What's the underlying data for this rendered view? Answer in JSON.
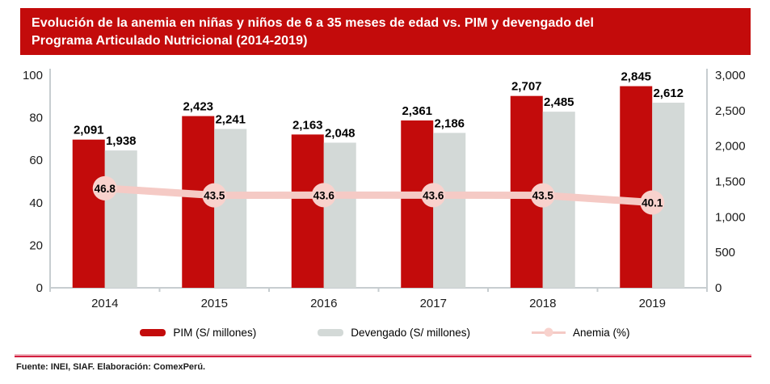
{
  "header": {
    "title": "Evolución de la anemia en niñas y niños de 6 a 35 meses de edad vs. PIM y devengado del\nPrograma Articulado Nutricional (2014-2019)"
  },
  "chart_data": {
    "type": "bar",
    "subtype": "combo-bar-line-dual-axis",
    "categories": [
      "2014",
      "2015",
      "2016",
      "2017",
      "2018",
      "2019"
    ],
    "series": [
      {
        "name": "PIM (S/ millones)",
        "type": "bar",
        "axis": "right",
        "color": "#C30B0B",
        "values": [
          2091,
          2423,
          2163,
          2361,
          2707,
          2845
        ],
        "labels": [
          "2,091",
          "2,423",
          "2,163",
          "2,361",
          "2,707",
          "2,845"
        ]
      },
      {
        "name": "Devengado (S/ millones)",
        "type": "bar",
        "axis": "right",
        "color": "#D3D9D7",
        "values": [
          1938,
          2241,
          2048,
          2186,
          2485,
          2612
        ],
        "labels": [
          "1,938",
          "2,241",
          "2,048",
          "2,186",
          "2,485",
          "2,612"
        ]
      },
      {
        "name": "Anemia (%)",
        "type": "line",
        "axis": "left",
        "color": "#F5CAC5",
        "marker_color": "#F8D2CD",
        "values": [
          46.8,
          43.5,
          43.6,
          43.6,
          43.5,
          40.1
        ],
        "labels": [
          "46.8",
          "43.5",
          "43.6",
          "43.6",
          "43.5",
          "40.1"
        ]
      }
    ],
    "left_axis": {
      "min": 0,
      "max": 100,
      "ticks": [
        "0",
        "20",
        "40",
        "60",
        "80",
        "100"
      ]
    },
    "right_axis": {
      "min": 0,
      "max": 3000,
      "ticks": [
        "0",
        "500",
        "1,000",
        "1,500",
        "2,000",
        "2,500",
        "3,000"
      ]
    },
    "grid": false,
    "legend_position": "bottom"
  },
  "legend": {
    "items": [
      {
        "label": "PIM (S/ millones)",
        "swatch": "bar",
        "color": "#C30B0B"
      },
      {
        "label": "Devengado (S/ millones)",
        "swatch": "bar",
        "color": "#D3D9D7"
      },
      {
        "label": "Anemia (%)",
        "swatch": "line-marker",
        "color": "#F5CAC5",
        "marker_color": "#F8D2CD"
      }
    ]
  },
  "footer": {
    "source": "Fuente: INEI, SIAF. Elaboración: ComexPerú."
  },
  "colors": {
    "banner_red": "#C30B0B",
    "axis_gray": "#C7CDD0",
    "rule_top": "#EDB3BD",
    "rule_bottom": "#D32040"
  }
}
